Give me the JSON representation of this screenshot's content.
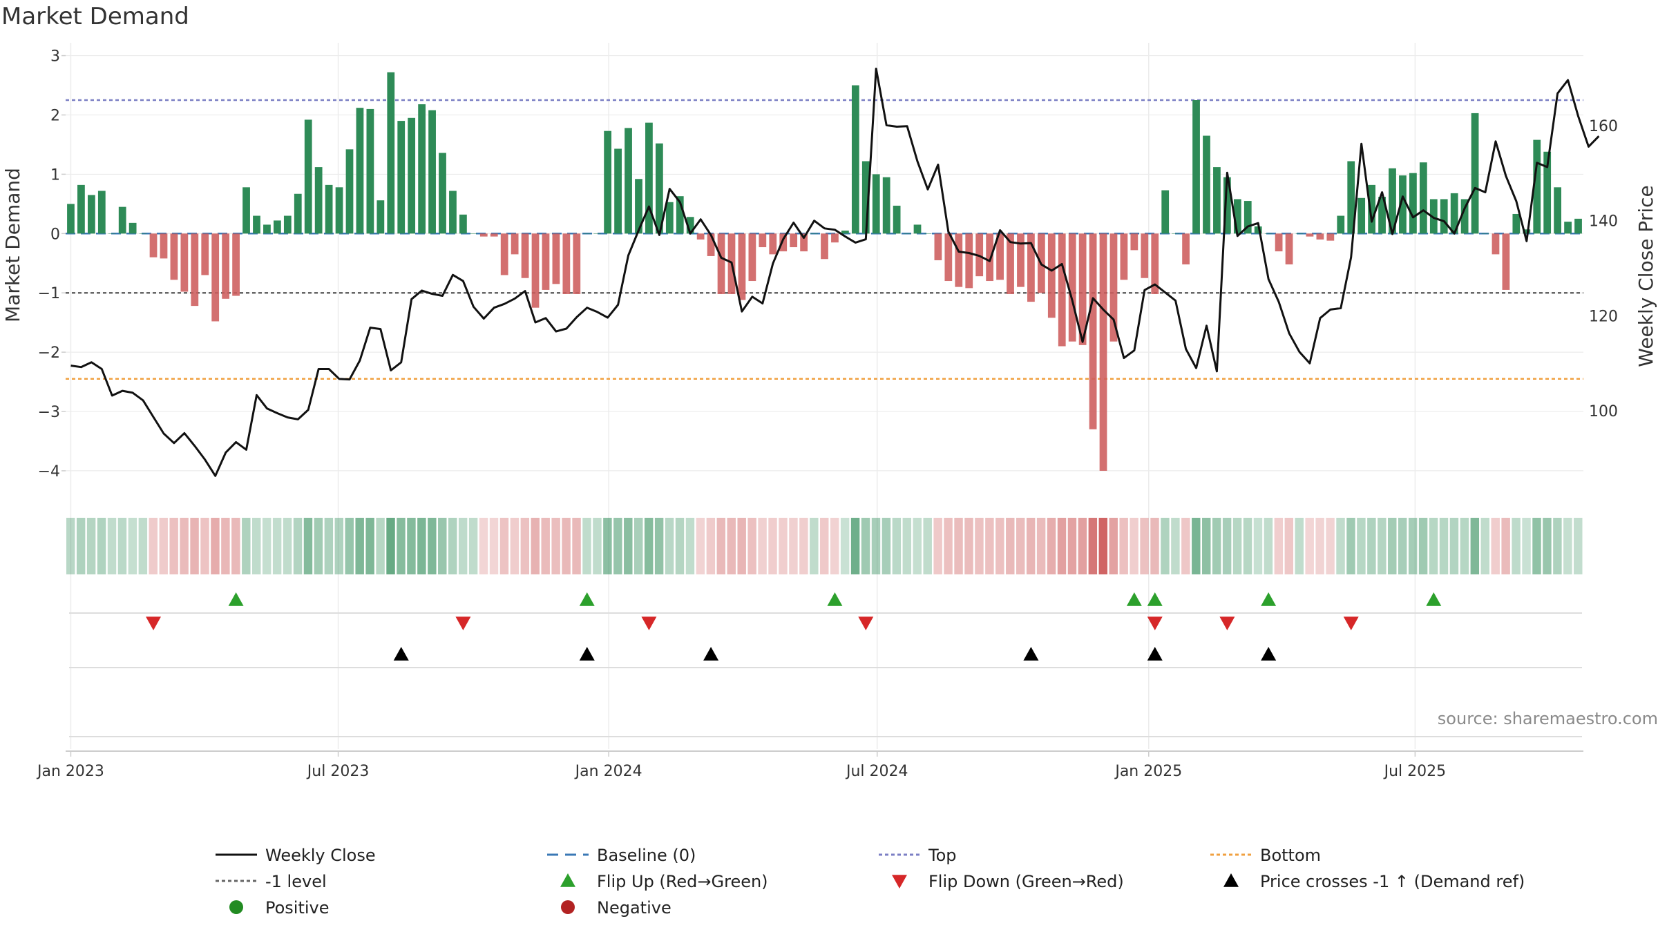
{
  "chart_data": {
    "type": "bar",
    "title": "Market Demand",
    "ylabel": "Market Demand",
    "y2label": "Weekly Close Price",
    "ylim": [
      -4.35,
      3.1
    ],
    "y2lim": [
      83,
      176
    ],
    "yticks": [
      "3",
      "2",
      "1",
      "0",
      "−1",
      "−2",
      "−3",
      "−4"
    ],
    "ytick_values": [
      3,
      2,
      1,
      0,
      -1,
      -2,
      -3,
      -4
    ],
    "y2ticks": [
      "160",
      "140",
      "120",
      "100"
    ],
    "y2tick_values": [
      160,
      140,
      120,
      100
    ],
    "xticks": [
      "Jan 2023",
      "Jul 2023",
      "Jan 2024",
      "Jul 2024",
      "Jan 2025",
      "Jul 2025"
    ],
    "xtick_positions_week": [
      0.5,
      26.4,
      52.6,
      78.6,
      104.9,
      130.7
    ],
    "levels": {
      "top": 2.25,
      "bottom": -2.45,
      "minus_one": -1,
      "baseline": 0
    },
    "demand": [
      0.5,
      0.82,
      0.65,
      0.72,
      0.0,
      0.45,
      0.18,
      0.0,
      -0.4,
      -0.42,
      -0.78,
      -0.98,
      -1.22,
      -0.7,
      -1.48,
      -1.1,
      -1.05,
      0.78,
      0.3,
      0.15,
      0.22,
      0.3,
      0.67,
      1.92,
      1.12,
      0.82,
      0.78,
      1.42,
      2.12,
      2.1,
      0.56,
      2.72,
      1.9,
      1.95,
      2.18,
      2.08,
      1.36,
      0.72,
      0.32,
      0.0,
      -0.05,
      -0.05,
      -0.7,
      -0.35,
      -0.75,
      -1.25,
      -0.95,
      -0.85,
      -1.02,
      -1.02,
      0.0,
      0.0,
      1.73,
      1.43,
      1.78,
      0.92,
      1.87,
      1.52,
      0.53,
      0.63,
      0.28,
      -0.1,
      -0.38,
      -1.02,
      -1.02,
      -1.12,
      -0.8,
      -0.23,
      -0.35,
      -0.3,
      -0.23,
      -0.3,
      0.0,
      -0.43,
      -0.15,
      0.05,
      2.5,
      1.22,
      1.0,
      0.95,
      0.47,
      0.0,
      0.15,
      0.0,
      -0.45,
      -0.8,
      -0.9,
      -0.92,
      -0.72,
      -0.8,
      -0.78,
      -1.02,
      -0.9,
      -1.15,
      -1.0,
      -1.42,
      -1.9,
      -1.82,
      -1.88,
      -3.3,
      -4.0,
      -1.82,
      -0.78,
      -0.28,
      -0.75,
      -1.02,
      0.73,
      0.0,
      -0.52,
      2.25,
      1.65,
      1.12,
      0.95,
      0.58,
      0.55,
      0.12,
      0.0,
      -0.3,
      -0.52,
      0.0,
      -0.05,
      -0.1,
      -0.12,
      0.3,
      1.22,
      0.6,
      0.82,
      0.62,
      1.1,
      0.98,
      1.02,
      1.2,
      0.58,
      0.58,
      0.68,
      0.58,
      2.03,
      0.0,
      -0.35,
      -0.95,
      0.33,
      0.07,
      1.58,
      1.38,
      0.78,
      0.2,
      0.25
    ],
    "close": [
      109.5,
      109.2,
      110.2,
      108.8,
      103.2,
      104.2,
      103.8,
      102.2,
      98.7,
      95.2,
      93.2,
      95.3,
      92.6,
      89.7,
      86.3,
      91.2,
      93.4,
      91.8,
      103.3,
      100.5,
      99.5,
      98.6,
      98.2,
      100.2,
      108.8,
      108.8,
      106.7,
      106.6,
      110.6,
      117.5,
      117.2,
      108.5,
      110.2,
      123.5,
      125.3,
      124.6,
      124.2,
      128.6,
      127.3,
      121.9,
      119.4,
      121.7,
      122.5,
      123.6,
      125.2,
      118.6,
      119.5,
      116.7,
      117.3,
      119.7,
      121.7,
      120.8,
      119.6,
      122.3,
      132.7,
      138.0,
      143.0,
      137.0,
      146.7,
      143.9,
      137.3,
      140.3,
      137.0,
      132.2,
      131.2,
      120.9,
      124.0,
      122.6,
      131.0,
      136.1,
      139.6,
      136.4,
      140.0,
      138.4,
      138.1,
      136.7,
      135.4,
      136.1,
      172.0,
      160.1,
      159.8,
      159.9,
      152.5,
      146.6,
      151.8,
      137.7,
      133.5,
      133.2,
      132.6,
      131.5,
      138.0,
      135.5,
      135.2,
      135.3,
      130.8,
      129.5,
      130.9,
      123.2,
      114.5,
      123.7,
      121.3,
      119.2,
      111.1,
      112.7,
      125.4,
      126.6,
      124.9,
      123.2,
      113.0,
      109.0,
      117.9,
      108.3,
      150.1,
      136.8,
      138.8,
      139.5,
      127.7,
      122.9,
      116.3,
      112.4,
      110.0,
      119.5,
      121.3,
      121.6,
      132.3,
      156.2,
      139.8,
      146.0,
      137.2,
      145.1,
      140.7,
      142.2,
      140.6,
      139.9,
      137.3,
      142.6,
      146.9,
      146.0,
      156.7,
      149.4,
      144.1,
      135.7,
      152.2,
      151.3,
      166.8,
      169.6,
      162.0,
      155.6,
      157.8
    ],
    "flip_up_weeks": [
      16,
      50,
      74,
      103,
      105,
      116,
      132
    ],
    "flip_down_weeks": [
      8,
      38,
      56,
      77,
      105,
      112,
      124
    ],
    "cross_weeks": [
      32,
      50,
      62,
      93,
      105,
      116
    ],
    "source": "source: sharemaestro.com",
    "legend": [
      {
        "label": "Weekly Close"
      },
      {
        "label": "Baseline (0)"
      },
      {
        "label": "Top"
      },
      {
        "label": "Bottom"
      },
      {
        "label": "-1 level"
      },
      {
        "label": "Flip Up (Red→Green)"
      },
      {
        "label": "Flip Down (Green→Red)"
      },
      {
        "label": "Price crosses -1 ↑ (Demand ref)"
      },
      {
        "label": "Positive"
      },
      {
        "label": "Negative"
      }
    ]
  },
  "colors": {
    "positive": "#2e8b57",
    "negative": "#cd5c5c",
    "close": "#111111",
    "top": "#7b7fc4",
    "bottom": "#f0a040",
    "minus_one": "#666666",
    "baseline": "#3a78b5",
    "flip_up": "#2ca02c",
    "flip_down": "#d62728",
    "cross": "#000000",
    "legend_positive": "#228b22",
    "legend_negative": "#b22222"
  }
}
